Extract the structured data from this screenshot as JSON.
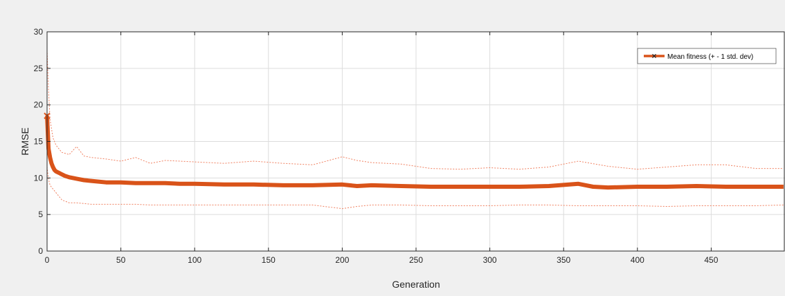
{
  "chart_data": {
    "type": "line",
    "xlabel": "Generation",
    "ylabel": "RMSE",
    "xlim": [
      0,
      500
    ],
    "ylim": [
      0,
      30
    ],
    "x_ticks": [
      0,
      50,
      100,
      150,
      200,
      250,
      300,
      350,
      400,
      450
    ],
    "y_ticks": [
      0,
      5,
      10,
      15,
      20,
      25,
      30
    ],
    "grid": true,
    "legend": {
      "position": "top-right",
      "entries": [
        "Mean fitness (+ - 1 std. dev)"
      ]
    },
    "colors": {
      "mean": "#d95319",
      "band": "#f08060",
      "grid": "#dcdcdc",
      "axes_bg": "#ffffff",
      "figure_bg": "#f0f0f0"
    },
    "series": [
      {
        "name": "Mean fitness (+ - 1 std. dev)",
        "role": "mean",
        "marker": "x",
        "x": [
          0,
          1,
          2,
          3,
          4,
          5,
          6,
          8,
          10,
          12,
          15,
          20,
          25,
          30,
          40,
          50,
          60,
          70,
          80,
          90,
          100,
          120,
          140,
          160,
          180,
          200,
          210,
          220,
          240,
          260,
          280,
          300,
          320,
          340,
          360,
          370,
          380,
          400,
          420,
          440,
          460,
          480,
          499
        ],
        "values": [
          18.5,
          14.0,
          12.8,
          12.0,
          11.5,
          11.1,
          10.9,
          10.7,
          10.5,
          10.3,
          10.1,
          9.9,
          9.7,
          9.6,
          9.4,
          9.4,
          9.3,
          9.3,
          9.3,
          9.2,
          9.2,
          9.1,
          9.1,
          9.0,
          9.0,
          9.1,
          8.9,
          9.0,
          8.9,
          8.8,
          8.8,
          8.8,
          8.8,
          8.9,
          9.2,
          8.8,
          8.7,
          8.8,
          8.8,
          8.9,
          8.8,
          8.8,
          8.8
        ]
      },
      {
        "role": "upper",
        "x": [
          0,
          1,
          2,
          4,
          6,
          8,
          10,
          15,
          20,
          25,
          30,
          40,
          50,
          60,
          70,
          80,
          100,
          120,
          140,
          160,
          180,
          200,
          210,
          220,
          240,
          260,
          280,
          300,
          320,
          340,
          360,
          380,
          400,
          420,
          440,
          460,
          480,
          499
        ],
        "values": [
          27.5,
          22.0,
          18.0,
          15.5,
          14.5,
          14.0,
          13.5,
          13.2,
          14.3,
          13.0,
          12.8,
          12.6,
          12.3,
          12.8,
          12.0,
          12.4,
          12.2,
          12.0,
          12.3,
          12.0,
          11.8,
          12.9,
          12.4,
          12.1,
          11.9,
          11.3,
          11.2,
          11.4,
          11.2,
          11.5,
          12.3,
          11.6,
          11.2,
          11.5,
          11.8,
          11.8,
          11.3,
          11.3
        ]
      },
      {
        "role": "lower",
        "x": [
          0,
          1,
          2,
          4,
          6,
          8,
          10,
          15,
          20,
          25,
          30,
          40,
          50,
          60,
          70,
          80,
          100,
          120,
          140,
          160,
          180,
          200,
          210,
          220,
          240,
          260,
          280,
          300,
          320,
          340,
          360,
          380,
          400,
          420,
          440,
          460,
          480,
          499
        ],
        "values": [
          11.5,
          9.8,
          9.0,
          8.5,
          8.0,
          7.5,
          7.0,
          6.6,
          6.6,
          6.5,
          6.4,
          6.4,
          6.4,
          6.4,
          6.3,
          6.3,
          6.3,
          6.3,
          6.3,
          6.3,
          6.3,
          5.8,
          6.1,
          6.3,
          6.3,
          6.2,
          6.2,
          6.2,
          6.3,
          6.3,
          6.2,
          6.2,
          6.2,
          6.1,
          6.2,
          6.2,
          6.2,
          6.3
        ]
      }
    ]
  }
}
